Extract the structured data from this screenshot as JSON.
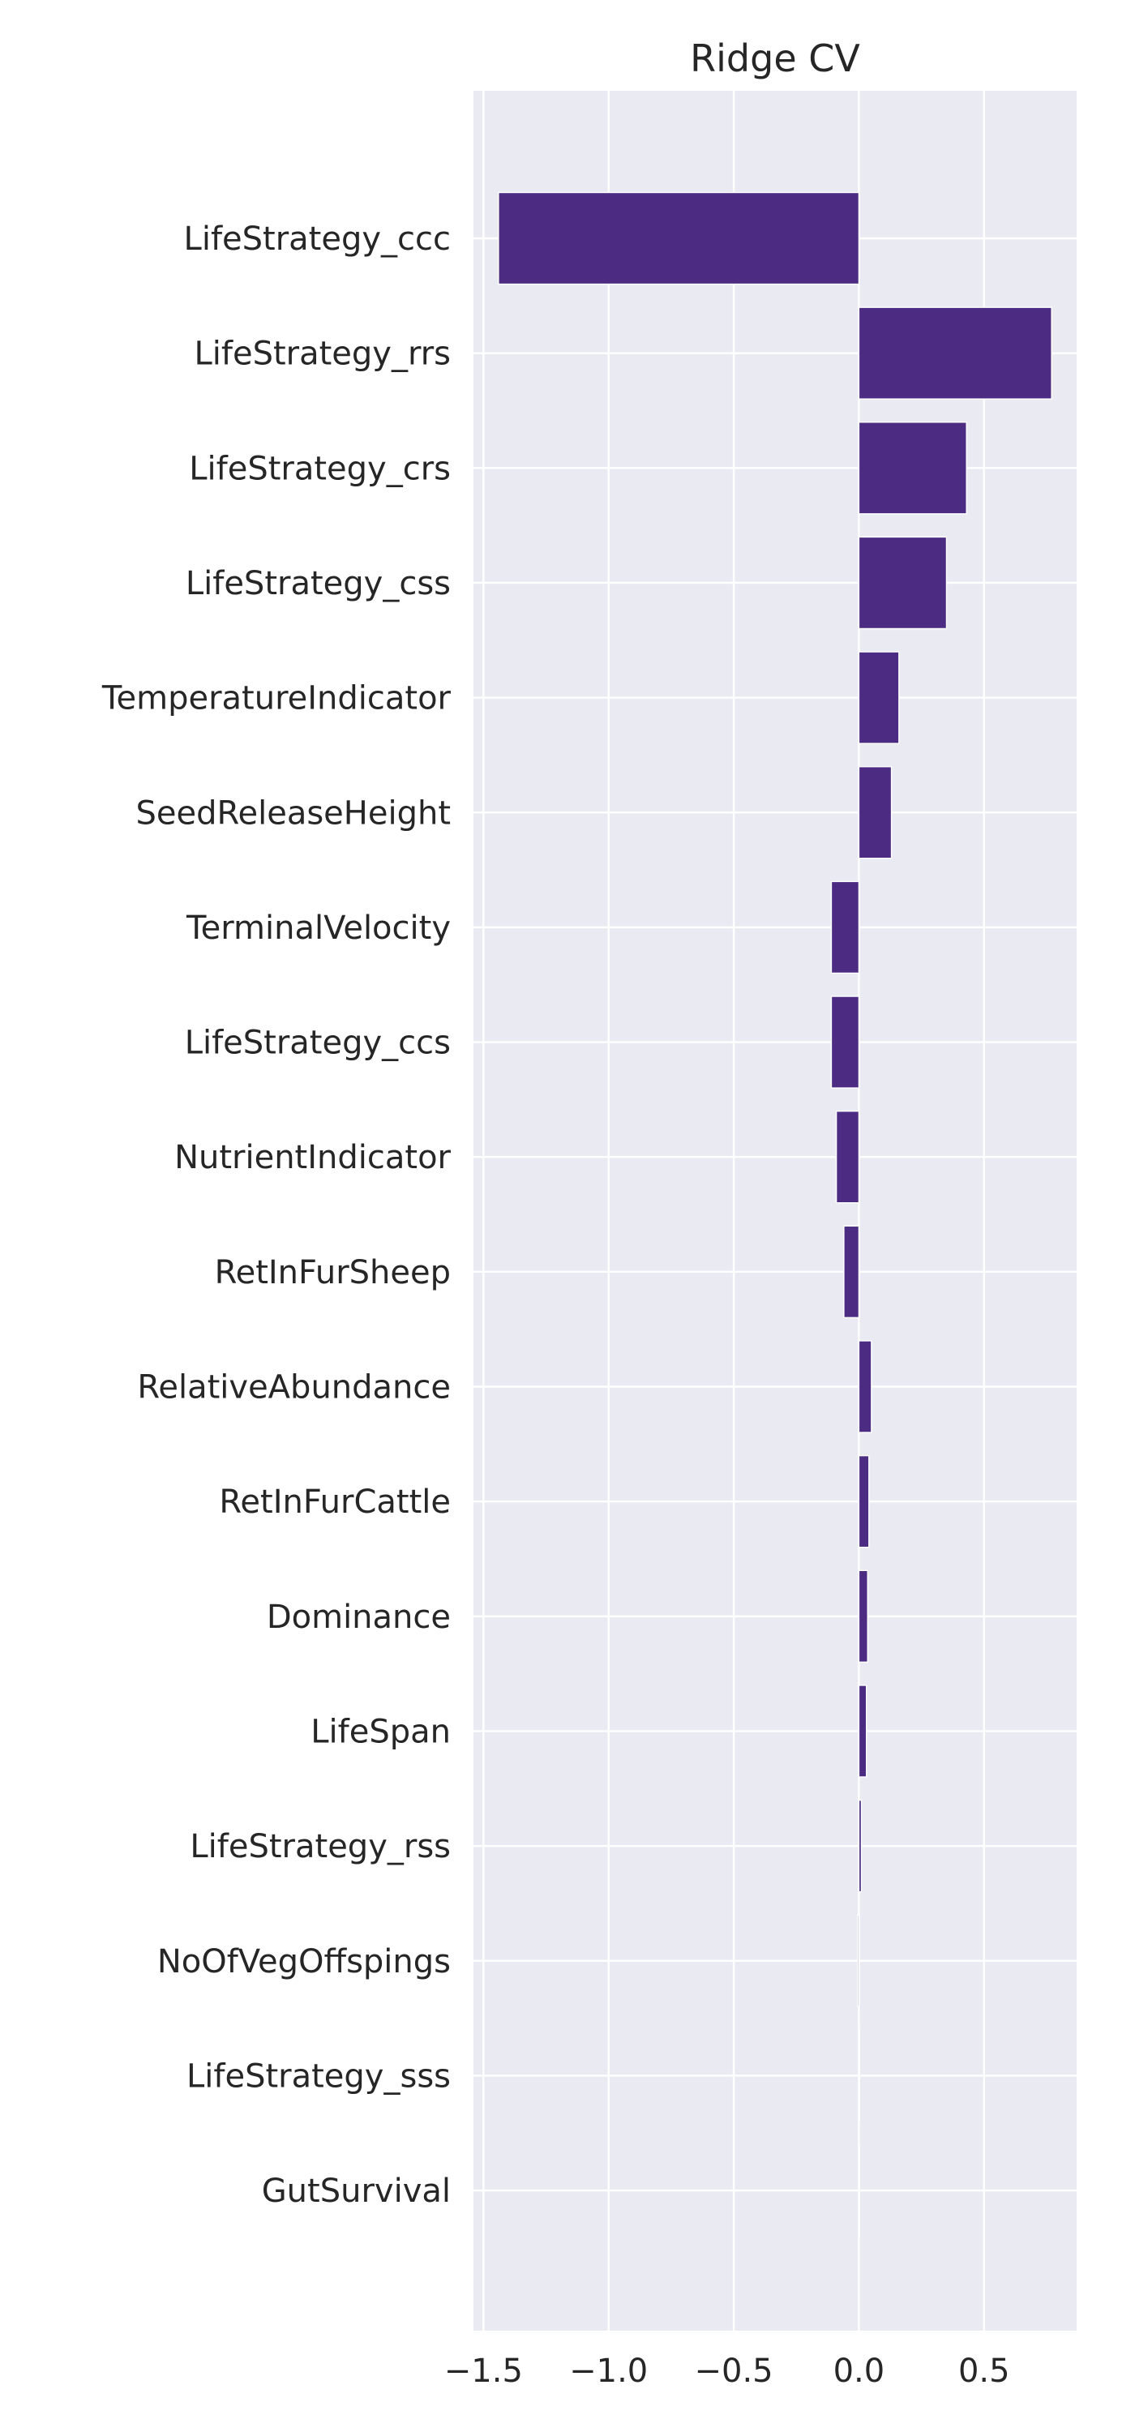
{
  "chart_data": {
    "type": "bar",
    "orientation": "horizontal",
    "title": "Ridge CV",
    "xlabel": "",
    "ylabel": "",
    "grid": true,
    "bar_color": "#4b2c82",
    "background_color": "#eaeaf2",
    "xlim": [
      -1.54,
      0.87
    ],
    "xticks": [
      -1.5,
      -1.0,
      -0.5,
      0.0,
      0.5
    ],
    "xtick_labels": [
      "−1.5",
      "−1.0",
      "−0.5",
      "0.0",
      "0.5"
    ],
    "categories": [
      "LifeStrategy_ccc",
      "LifeStrategy_rrs",
      "LifeStrategy_crs",
      "LifeStrategy_css",
      "TemperatureIndicator",
      "SeedReleaseHeight",
      "TerminalVelocity",
      "LifeStrategy_ccs",
      "NutrientIndicator",
      "RetInFurSheep",
      "RelativeAbundance",
      "RetInFurCattle",
      "Dominance",
      "LifeSpan",
      "LifeStrategy_rss",
      "NoOfVegOffspings",
      "LifeStrategy_sss",
      "GutSurvival"
    ],
    "values": [
      -1.44,
      0.77,
      0.43,
      0.35,
      0.16,
      0.13,
      -0.11,
      -0.11,
      -0.09,
      -0.06,
      0.05,
      0.04,
      0.035,
      0.03,
      0.01,
      -0.005,
      0.003,
      0.0
    ]
  }
}
